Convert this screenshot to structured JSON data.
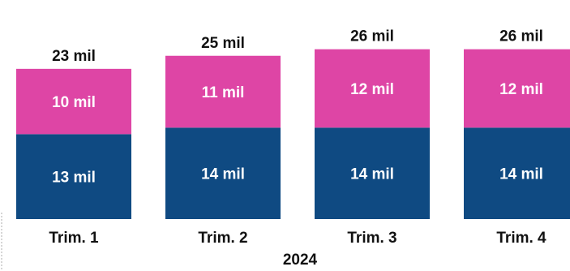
{
  "chart_data": {
    "type": "bar",
    "stacked": true,
    "categories": [
      "Trim. 1",
      "Trim. 2",
      "Trim. 3",
      "Trim. 4"
    ],
    "xlabel": "2024",
    "ylabel": "",
    "series": [
      {
        "values": [
          13,
          14,
          14,
          14
        ],
        "labels": [
          "13 mil",
          "14 mil",
          "14 mil",
          "14 mil"
        ],
        "color": "#0f4a82"
      },
      {
        "values": [
          10,
          11,
          12,
          12
        ],
        "labels": [
          "10 mil",
          "11 mil",
          "12 mil",
          "12 mil"
        ],
        "color": "#de45a5"
      }
    ],
    "totals": [
      23,
      25,
      26,
      26
    ],
    "total_labels": [
      "23 mil",
      "25 mil",
      "26 mil",
      "26 mil"
    ],
    "grid": false,
    "legend": "none"
  }
}
